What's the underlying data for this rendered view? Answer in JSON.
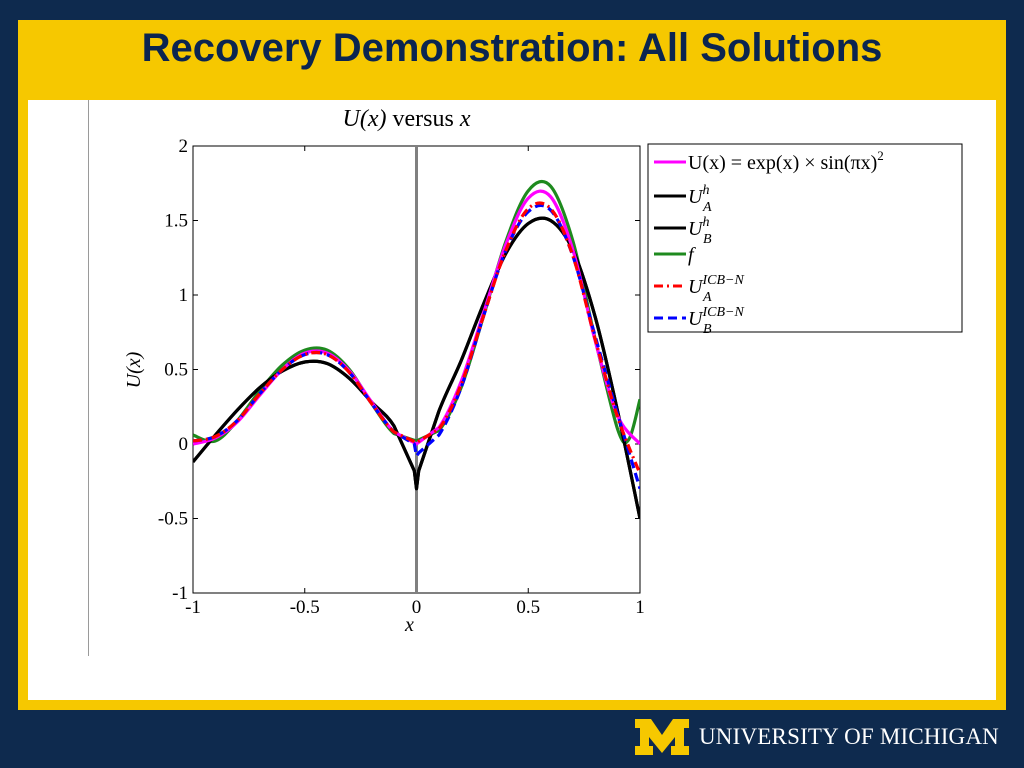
{
  "slide": {
    "title": "Recovery Demonstration: All Solutions",
    "footer_text": "UNIVERSITY OF MICHIGAN",
    "logo_letter": "M"
  },
  "colors": {
    "navy": "#0e2a4e",
    "maize": "#f6c800",
    "magenta": "#ff00ff",
    "black": "#000000",
    "green": "#1e8a1e",
    "red": "#ff0000",
    "blue": "#0000ff"
  },
  "chart_data": {
    "type": "line",
    "title_parts": [
      "U(x)",
      " versus ",
      "x"
    ],
    "xlabel": "x",
    "ylabel": "U(x)",
    "xlim": [
      -1,
      1
    ],
    "ylim": [
      -1,
      2
    ],
    "xticks": [
      -1,
      -0.5,
      0,
      0.5,
      1
    ],
    "xtick_labels": [
      "-1",
      "-0.5",
      "0",
      "0.5",
      "1"
    ],
    "yticks": [
      -1,
      -0.5,
      0,
      0.5,
      1,
      1.5,
      2
    ],
    "ytick_labels": [
      "-1",
      "-0.5",
      "0",
      "0.5",
      "1",
      "1.5",
      "2"
    ],
    "vertical_line_x": 0,
    "legend_position": "outside-right-top",
    "series": [
      {
        "name": "U(x) = exp(x) × sin(πx)²",
        "label_main": "U(x) = exp(x) × sin(πx)",
        "label_sup": "2",
        "label_sub": "",
        "color": "#ff00ff",
        "dash": "solid",
        "x": [
          -1,
          -0.9,
          -0.8,
          -0.7,
          -0.6,
          -0.5,
          -0.4,
          -0.3,
          -0.2,
          -0.1,
          0,
          0.1,
          0.2,
          0.3,
          0.4,
          0.5,
          0.6,
          0.7,
          0.8,
          0.9,
          1
        ],
        "y": [
          0,
          0.04,
          0.15,
          0.33,
          0.5,
          0.61,
          0.61,
          0.49,
          0.28,
          0.08,
          0,
          0.11,
          0.42,
          0.88,
          1.34,
          1.65,
          1.66,
          1.3,
          0.69,
          0.19,
          0
        ]
      },
      {
        "name": "U_A^h",
        "label_main": "U",
        "label_sup": "h",
        "label_sub": "A",
        "color": "#000000",
        "dash": "solid",
        "x": [
          -1,
          -0.9,
          -0.8,
          -0.7,
          -0.6,
          -0.5,
          -0.4,
          -0.3,
          -0.2,
          -0.1,
          -0.01,
          0,
          0.01,
          0.1,
          0.2,
          0.3,
          0.4,
          0.5,
          0.6,
          0.7,
          0.8,
          0.9,
          1
        ],
        "y": [
          -0.12,
          0.06,
          0.23,
          0.38,
          0.49,
          0.55,
          0.54,
          0.44,
          0.28,
          0.12,
          -0.18,
          -0.3,
          -0.18,
          0.22,
          0.56,
          0.94,
          1.28,
          1.48,
          1.5,
          1.3,
          0.85,
          0.22,
          -0.5
        ]
      },
      {
        "name": "U_B^h",
        "label_main": "U",
        "label_sup": "h",
        "label_sub": "B",
        "color": "#000000",
        "dash": "solid",
        "x": [
          -1,
          -0.9,
          -0.8,
          -0.7,
          -0.6,
          -0.5,
          -0.4,
          -0.3,
          -0.2,
          -0.1,
          -0.01,
          0,
          0.01,
          0.1,
          0.2,
          0.3,
          0.4,
          0.5,
          0.6,
          0.7,
          0.8,
          0.9,
          1
        ],
        "y": [
          -0.12,
          0.06,
          0.23,
          0.38,
          0.49,
          0.55,
          0.54,
          0.44,
          0.28,
          0.12,
          -0.18,
          -0.3,
          -0.18,
          0.22,
          0.56,
          0.94,
          1.28,
          1.48,
          1.5,
          1.3,
          0.85,
          0.22,
          -0.5
        ]
      },
      {
        "name": "f",
        "label_main": "f",
        "label_sup": "",
        "label_sub": "",
        "color": "#1e8a1e",
        "dash": "solid",
        "x": [
          -1,
          -0.9,
          -0.8,
          -0.7,
          -0.6,
          -0.5,
          -0.4,
          -0.3,
          -0.2,
          -0.1,
          0,
          0.1,
          0.2,
          0.3,
          0.4,
          0.5,
          0.6,
          0.7,
          0.8,
          0.9,
          0.95,
          1
        ],
        "y": [
          0.06,
          0.02,
          0.16,
          0.36,
          0.53,
          0.63,
          0.63,
          0.5,
          0.27,
          0.07,
          0.02,
          0.09,
          0.38,
          0.86,
          1.36,
          1.7,
          1.73,
          1.36,
          0.7,
          0.1,
          0.03,
          0.3
        ]
      },
      {
        "name": "U_A^ICB-N",
        "label_main": "U",
        "label_sup": "ICB−N",
        "label_sub": "A",
        "color": "#ff0000",
        "dash": "dashdot",
        "x": [
          -1,
          -0.9,
          -0.8,
          -0.7,
          -0.6,
          -0.5,
          -0.4,
          -0.3,
          -0.2,
          -0.1,
          0,
          0.1,
          0.2,
          0.3,
          0.4,
          0.5,
          0.6,
          0.7,
          0.8,
          0.9,
          1
        ],
        "y": [
          0.02,
          0.05,
          0.16,
          0.34,
          0.5,
          0.6,
          0.6,
          0.48,
          0.27,
          0.08,
          0.01,
          0.1,
          0.4,
          0.86,
          1.3,
          1.58,
          1.58,
          1.26,
          0.7,
          0.18,
          -0.2
        ]
      },
      {
        "name": "U_B^ICB-N",
        "label_main": "U",
        "label_sup": "ICB−N",
        "label_sub": "B",
        "color": "#0000ff",
        "dash": "dash",
        "x": [
          -1,
          -0.9,
          -0.8,
          -0.7,
          -0.6,
          -0.5,
          -0.4,
          -0.3,
          -0.2,
          -0.1,
          -0.01,
          0,
          0.01,
          0.1,
          0.2,
          0.3,
          0.4,
          0.5,
          0.6,
          0.7,
          0.8,
          0.9,
          1
        ],
        "y": [
          0.02,
          0.05,
          0.16,
          0.34,
          0.5,
          0.6,
          0.6,
          0.48,
          0.27,
          0.08,
          0.0,
          -0.08,
          -0.06,
          0.06,
          0.38,
          0.86,
          1.3,
          1.56,
          1.57,
          1.26,
          0.72,
          0.2,
          -0.3
        ]
      }
    ]
  }
}
